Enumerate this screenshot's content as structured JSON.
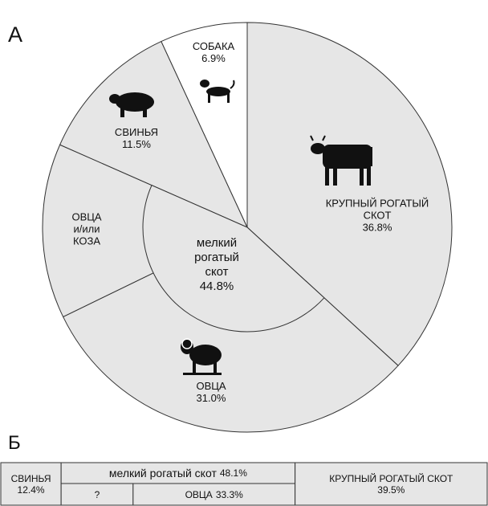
{
  "chart_data": [
    {
      "type": "pie",
      "panel_label": "А",
      "categories": [
        "КРУПНЫЙ РОГАТЫЙ СКОТ",
        "ОВЦА",
        "ОВЦА\nи/или\nКОЗА",
        "СВИНЬЯ",
        "СОБАКА"
      ],
      "values": [
        36.8,
        31.0,
        13.8,
        11.5,
        6.9
      ],
      "value_labels": [
        "36.8%",
        "31.0%",
        null,
        "11.5%",
        "6.9%"
      ],
      "colors": [
        "#e6e6e6",
        "#e6e6e6",
        "#e6e6e6",
        "#e6e6e6",
        "#ffffff"
      ],
      "group": {
        "name": "мелкий\nрогатый\nскот",
        "value": 44.8,
        "value_label": "44.8%",
        "start": 1,
        "color": "#e6e6e6"
      }
    },
    {
      "type": "stacked-bar",
      "panel_label": "Б",
      "xlim": [
        0,
        100
      ],
      "categories": [
        "СВИНЬЯ",
        "мелкий рогатый скот",
        "КРУПНЫЙ РОГАТЫЙ СКОТ"
      ],
      "values": [
        12.4,
        48.1,
        39.5
      ],
      "value_labels": [
        "12.4%",
        "48.1%",
        "39.5%"
      ],
      "color": "#e6e6e6",
      "sub": {
        "parent": 1,
        "categories": [
          "?",
          "ОВЦА"
        ],
        "values": [
          14.8,
          33.3
        ],
        "value_labels": [
          null,
          "33.3%"
        ]
      }
    }
  ]
}
